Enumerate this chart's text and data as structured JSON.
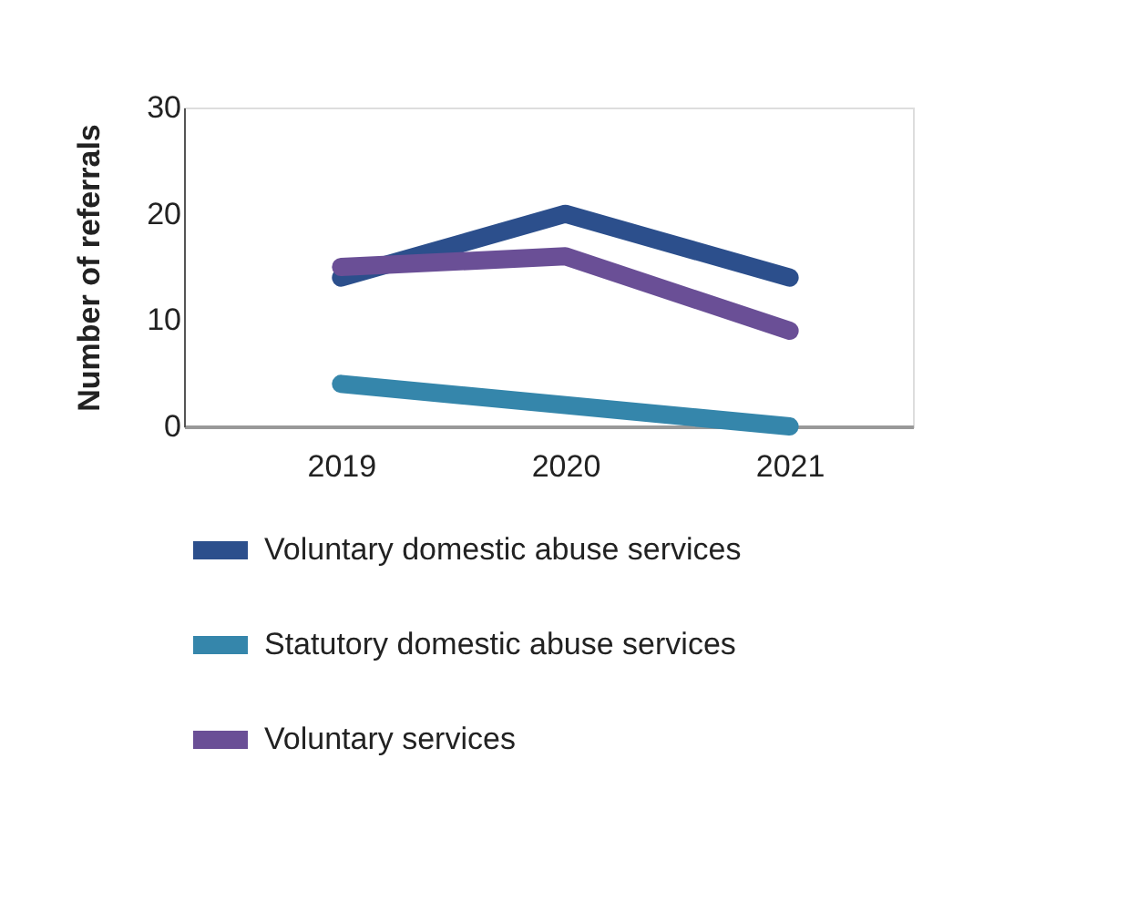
{
  "chart_data": {
    "type": "line",
    "ylabel": "Number of referrals",
    "categories": [
      "2019",
      "2020",
      "2021"
    ],
    "series": [
      {
        "name": "Voluntary domestic abuse services",
        "color": "#2c4f8c",
        "values": [
          14,
          20,
          14
        ]
      },
      {
        "name": "Statutory domestic abuse services",
        "color": "#3586ab",
        "values": [
          4,
          2,
          0
        ]
      },
      {
        "name": "Voluntary services",
        "color": "#6a4f96",
        "values": [
          15,
          16,
          9
        ]
      }
    ],
    "ylim": [
      0,
      30
    ],
    "yticks": [
      0,
      10,
      20,
      30
    ],
    "grid": false,
    "legend": "bottom",
    "marker": "none",
    "line_style": "solid"
  }
}
